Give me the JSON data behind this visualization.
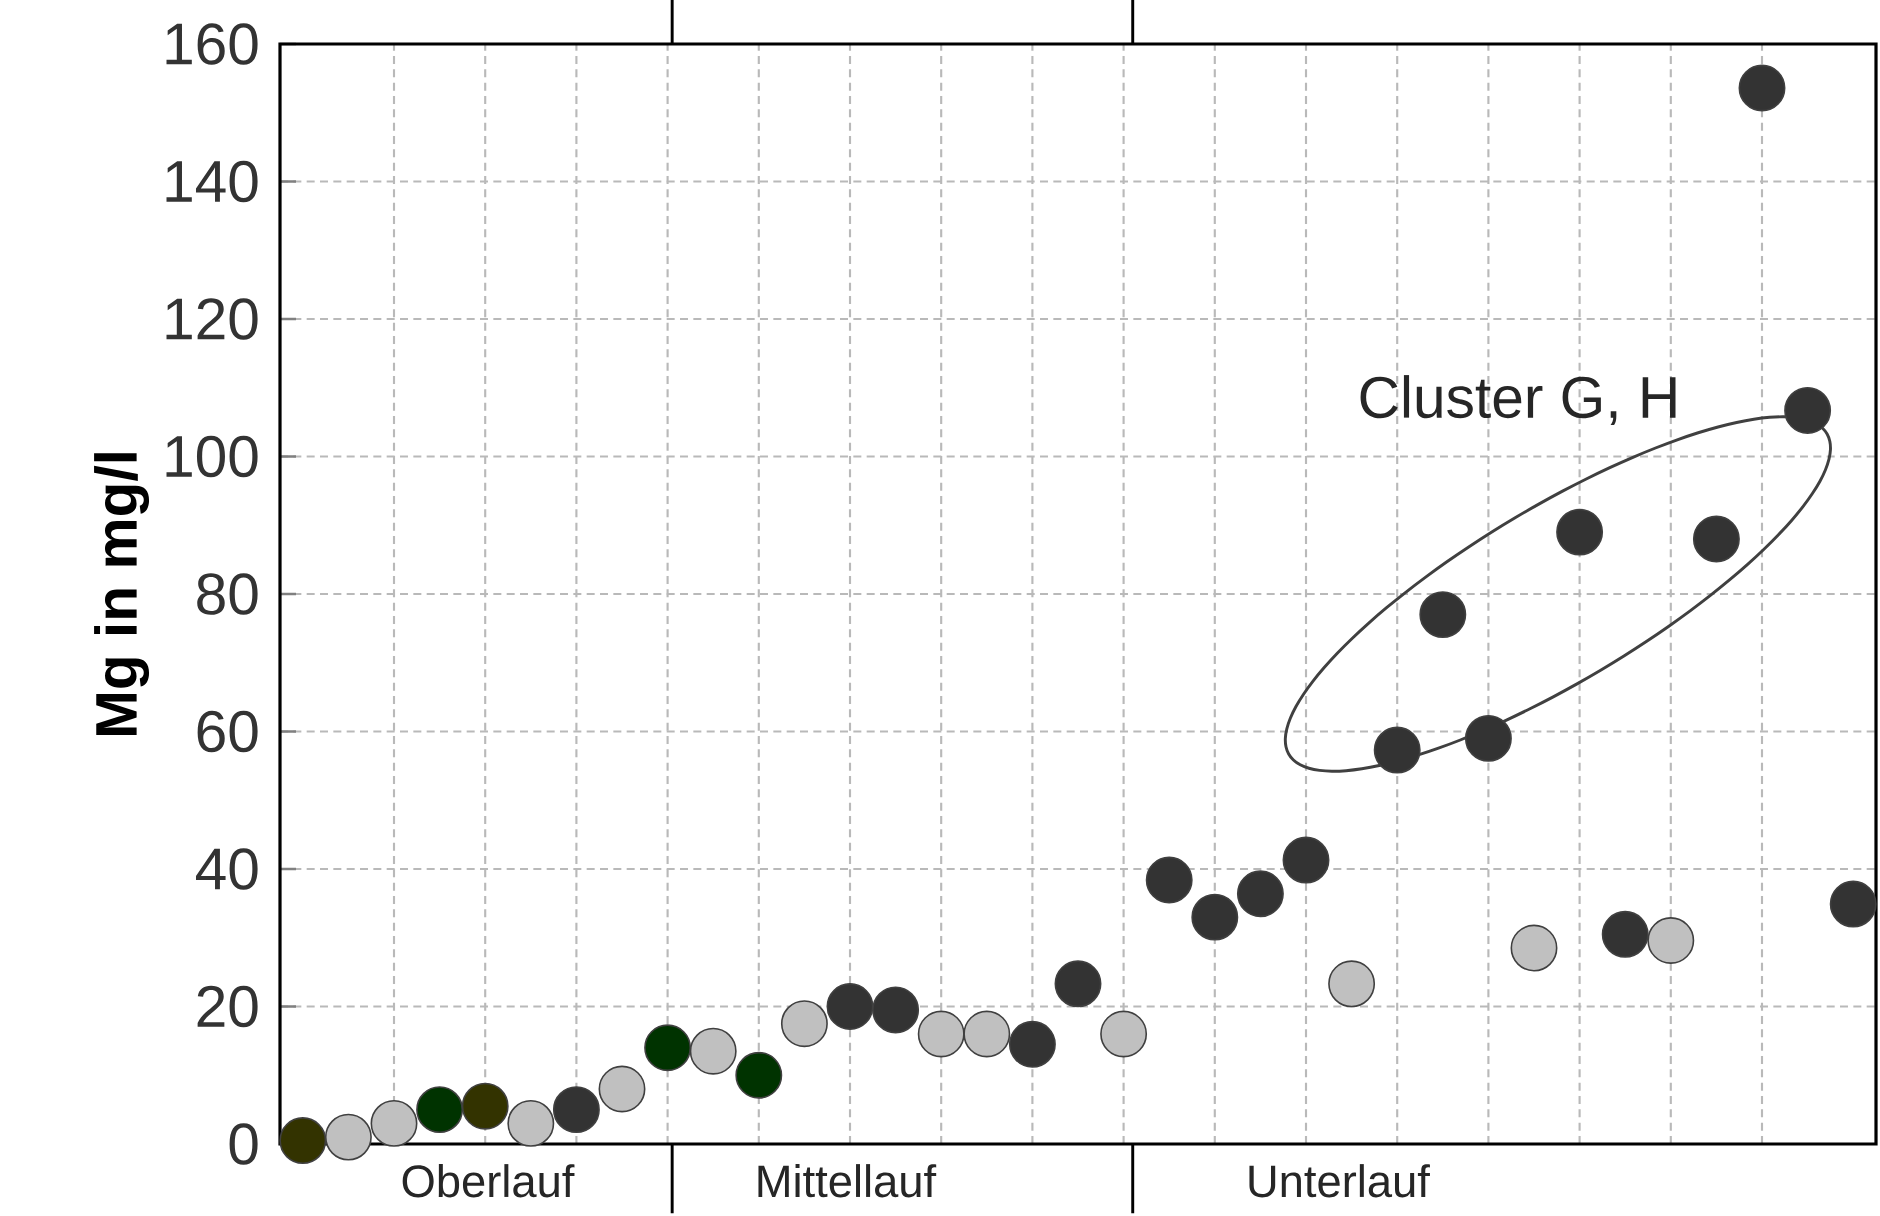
{
  "chart_data": {
    "type": "scatter",
    "ylabel": "Mg in mg/l",
    "categories": [
      null,
      null,
      null,
      null,
      null,
      null,
      null,
      null,
      null,
      null,
      null,
      null,
      null,
      null,
      null,
      null,
      null,
      null,
      null,
      null,
      null,
      null,
      null,
      null,
      null,
      null,
      null,
      null,
      null,
      null,
      null,
      null,
      null,
      null,
      null
    ],
    "values": [
      0.5,
      1,
      3,
      5,
      5.5,
      3,
      5,
      8,
      14,
      13.5,
      10,
      17.5,
      20,
      19.5,
      16,
      16,
      14.5,
      23.3,
      16,
      38.4,
      33,
      36.4,
      41.3,
      23.3,
      57.3,
      77,
      59,
      28.5,
      89,
      30.5,
      29.6,
      88,
      153.6,
      106.7,
      34.9
    ],
    "colors": [
      "#333300",
      "#c0c0c0",
      "#c0c0c0",
      "#003300",
      "#333300",
      "#c0c0c0",
      "#333333",
      "#c0c0c0",
      "#003300",
      "#c0c0c0",
      "#003300",
      "#c0c0c0",
      "#333333",
      "#333333",
      "#c0c0c0",
      "#c0c0c0",
      "#333333",
      "#333333",
      "#c0c0c0",
      "#333333",
      "#333333",
      "#333333",
      "#333333",
      "#c0c0c0",
      "#333333",
      "#333333",
      "#333333",
      "#c0c0c0",
      "#333333",
      "#333333",
      "#c0c0c0",
      "#333333",
      "#333333",
      "#333333",
      "#333333"
    ],
    "ylim": [
      0,
      160
    ],
    "yticks": [
      0,
      20,
      40,
      60,
      80,
      100,
      120,
      140,
      160
    ],
    "grid": true,
    "marker": "circle",
    "annotations": [
      "Oberlauf",
      "Mittellauf",
      "Unterlauf",
      "Cluster G, H"
    ]
  }
}
